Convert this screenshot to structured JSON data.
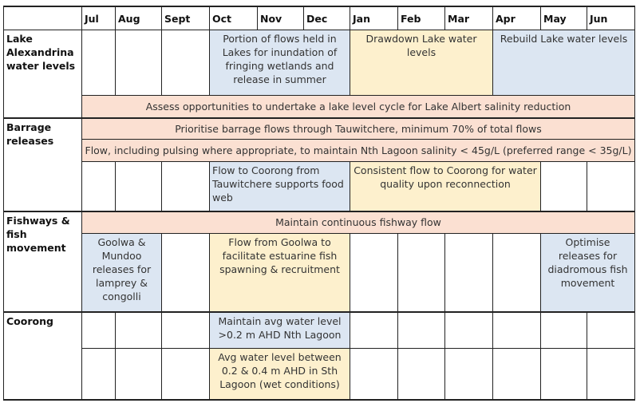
{
  "months": [
    "Jul",
    "Aug",
    "Sept",
    "Oct",
    "Nov",
    "Dec",
    "Jan",
    "Feb",
    "Mar",
    "Apr",
    "May",
    "Jun"
  ],
  "sections": {
    "lake": {
      "label": "Lake Alexandrina water levels",
      "portion": "Portion of flows held in Lakes for inundation of fringing wetlands and release in summer",
      "drawdown": "Drawdown Lake water levels",
      "rebuild": "Rebuild Lake water levels",
      "assess": "Assess opportunities to undertake a lake level cycle for Lake Albert salinity reduction"
    },
    "barrage": {
      "label": "Barrage releases",
      "prioritise": "Prioritise barrage flows through Tauwitchere, minimum 70% of total flows",
      "flow_salinity": "Flow, including pulsing where appropriate, to maintain Nth Lagoon salinity < 45g/L (preferred range < 35g/L)",
      "food_web": "Flow to Coorong from Tauwitchere supports food web",
      "consistent": "Consistent flow to Coorong for water quality upon reconnection"
    },
    "fish": {
      "label": "Fishways & fish movement",
      "maintain": "Maintain continuous fishway flow",
      "goolwa_mundoo": "Goolwa & Mundoo releases for lamprey & congolli",
      "estuarine": "Flow from Goolwa to facilitate estuarine fish spawning & recruitment",
      "diadromous": "Optimise releases for diadromous fish movement"
    },
    "coorong": {
      "label": "Coorong",
      "north": "Maintain avg water level >0.2 m AHD Nth Lagoon",
      "south": "Avg water level between 0.2 & 0.4 m AHD in Sth Lagoon (wet conditions)"
    }
  },
  "colors": {
    "blue": "#dce6f2",
    "yellow": "#fdf0cd",
    "salmon": "#fbe0d2"
  }
}
